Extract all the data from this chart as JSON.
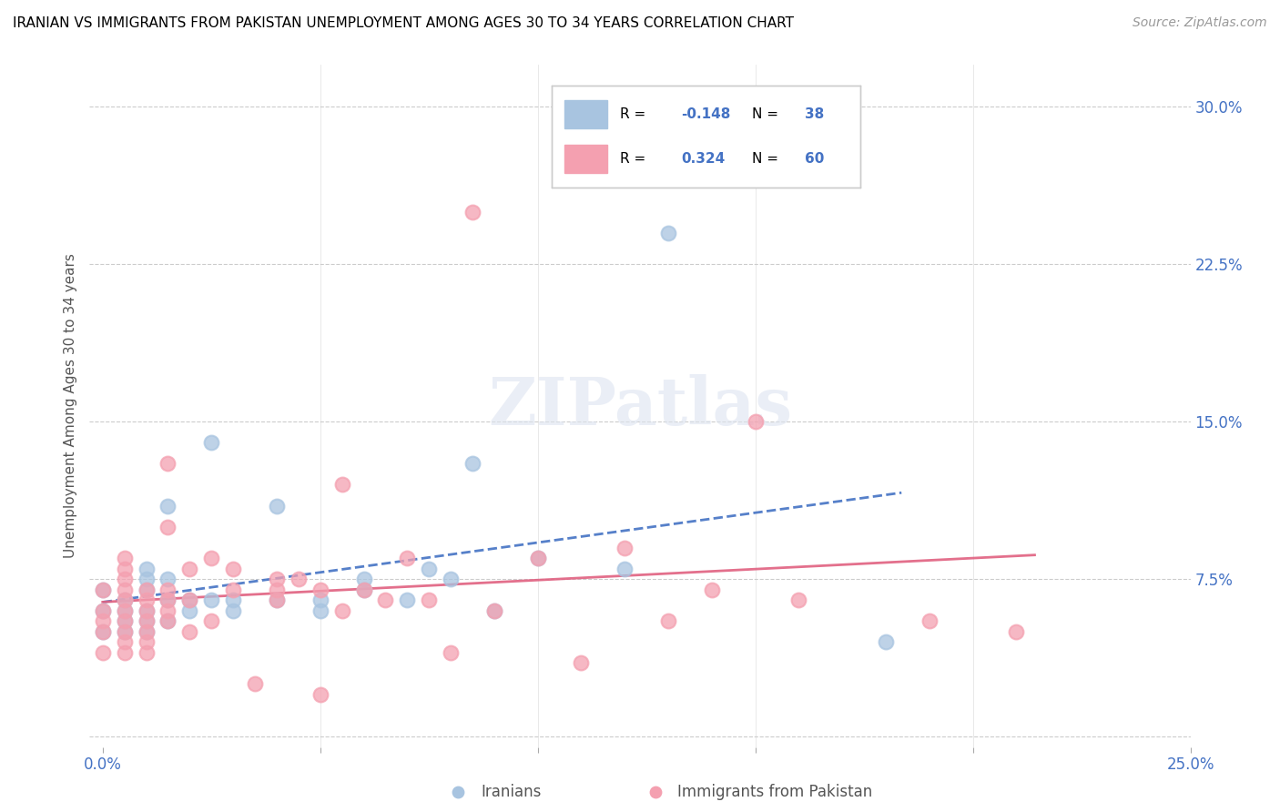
{
  "title": "IRANIAN VS IMMIGRANTS FROM PAKISTAN UNEMPLOYMENT AMONG AGES 30 TO 34 YEARS CORRELATION CHART",
  "source": "Source: ZipAtlas.com",
  "ylabel": "Unemployment Among Ages 30 to 34 years",
  "xlim": [
    0.0,
    0.25
  ],
  "ylim": [
    -0.005,
    0.32
  ],
  "iranian_R": -0.148,
  "iranian_N": 38,
  "pakistan_R": 0.324,
  "pakistan_N": 60,
  "iranian_color": "#a8c4e0",
  "pakistan_color": "#f4a0b0",
  "iranian_line_color": "#4472c4",
  "pakistan_line_color": "#e06080",
  "iranians_x": [
    0.0,
    0.0,
    0.0,
    0.005,
    0.005,
    0.005,
    0.005,
    0.01,
    0.01,
    0.01,
    0.01,
    0.01,
    0.01,
    0.015,
    0.015,
    0.015,
    0.015,
    0.02,
    0.02,
    0.025,
    0.025,
    0.03,
    0.03,
    0.04,
    0.04,
    0.05,
    0.05,
    0.06,
    0.06,
    0.07,
    0.075,
    0.08,
    0.085,
    0.09,
    0.1,
    0.12,
    0.13,
    0.18
  ],
  "iranians_y": [
    0.05,
    0.06,
    0.07,
    0.05,
    0.055,
    0.06,
    0.065,
    0.05,
    0.055,
    0.06,
    0.07,
    0.075,
    0.08,
    0.055,
    0.065,
    0.075,
    0.11,
    0.06,
    0.065,
    0.065,
    0.14,
    0.06,
    0.065,
    0.065,
    0.11,
    0.06,
    0.065,
    0.07,
    0.075,
    0.065,
    0.08,
    0.075,
    0.13,
    0.06,
    0.085,
    0.08,
    0.24,
    0.045
  ],
  "pakistan_x": [
    0.0,
    0.0,
    0.0,
    0.0,
    0.0,
    0.005,
    0.005,
    0.005,
    0.005,
    0.005,
    0.005,
    0.005,
    0.005,
    0.005,
    0.005,
    0.01,
    0.01,
    0.01,
    0.01,
    0.01,
    0.01,
    0.01,
    0.015,
    0.015,
    0.015,
    0.015,
    0.015,
    0.015,
    0.02,
    0.02,
    0.02,
    0.025,
    0.025,
    0.03,
    0.03,
    0.035,
    0.04,
    0.04,
    0.04,
    0.045,
    0.05,
    0.05,
    0.055,
    0.055,
    0.06,
    0.065,
    0.07,
    0.075,
    0.08,
    0.085,
    0.09,
    0.1,
    0.11,
    0.12,
    0.13,
    0.14,
    0.15,
    0.16,
    0.19,
    0.21
  ],
  "pakistan_y": [
    0.04,
    0.05,
    0.055,
    0.06,
    0.07,
    0.04,
    0.045,
    0.05,
    0.055,
    0.06,
    0.065,
    0.07,
    0.075,
    0.08,
    0.085,
    0.04,
    0.045,
    0.05,
    0.055,
    0.06,
    0.065,
    0.07,
    0.055,
    0.06,
    0.065,
    0.07,
    0.1,
    0.13,
    0.05,
    0.065,
    0.08,
    0.055,
    0.085,
    0.07,
    0.08,
    0.025,
    0.065,
    0.07,
    0.075,
    0.075,
    0.02,
    0.07,
    0.06,
    0.12,
    0.07,
    0.065,
    0.085,
    0.065,
    0.04,
    0.25,
    0.06,
    0.085,
    0.035,
    0.09,
    0.055,
    0.07,
    0.15,
    0.065,
    0.055,
    0.05
  ]
}
